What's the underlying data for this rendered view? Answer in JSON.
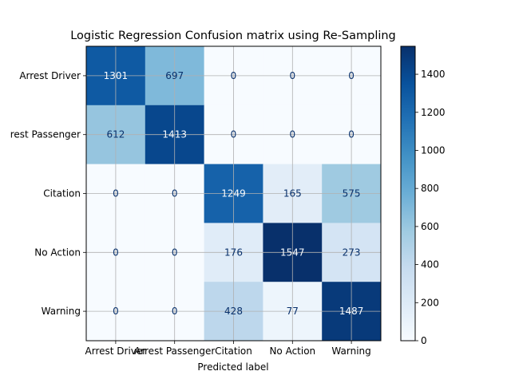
{
  "chart_data": {
    "type": "heatmap",
    "title": "Logistic Regression Confusion matrix using Re-Sampling",
    "xlabel": "Predicted label",
    "ylabel": "",
    "x_categories": [
      "Arrest Driver",
      "Arrest Passenger",
      "Citation",
      "No Action",
      "Warning"
    ],
    "y_categories": [
      "Arrest Driver",
      "Arrest Passenger",
      "Citation",
      "No Action",
      "Warning"
    ],
    "y_tick_labels_shown": [
      "Arrest Driver",
      "rest Passenger",
      "Citation",
      "No Action",
      "Warning"
    ],
    "values": [
      [
        1301,
        697,
        0,
        0,
        0
      ],
      [
        612,
        1413,
        0,
        0,
        0
      ],
      [
        0,
        0,
        1249,
        165,
        575
      ],
      [
        0,
        0,
        176,
        1547,
        273
      ],
      [
        0,
        0,
        428,
        77,
        1487
      ]
    ],
    "colormap": "Blues",
    "colorbar": {
      "range": [
        0,
        1547
      ],
      "ticks": [
        0,
        200,
        400,
        600,
        800,
        1000,
        1200,
        1400
      ]
    },
    "grid": true,
    "text_color_dark": "#08306b",
    "text_color_light": "#f7fbff"
  }
}
